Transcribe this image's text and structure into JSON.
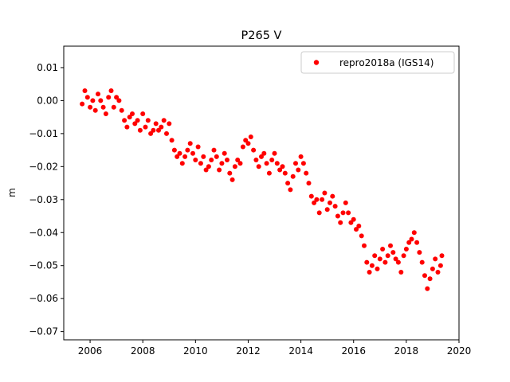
{
  "chart_data": {
    "type": "scatter",
    "title": "P265 V",
    "xlabel": "",
    "ylabel": "m",
    "xlim": [
      2005.0,
      2020.0
    ],
    "ylim": [
      -0.0725,
      0.0165
    ],
    "xticks": [
      2006,
      2008,
      2010,
      2012,
      2014,
      2016,
      2018,
      2020
    ],
    "xtick_labels": [
      "2006",
      "2008",
      "2010",
      "2012",
      "2014",
      "2016",
      "2018",
      "2020"
    ],
    "yticks": [
      0.01,
      0.0,
      -0.01,
      -0.02,
      -0.03,
      -0.04,
      -0.05,
      -0.06,
      -0.07
    ],
    "ytick_labels": [
      "0.01",
      "0.00",
      "−0.01",
      "−0.02",
      "−0.03",
      "−0.04",
      "−0.05",
      "−0.06",
      "−0.07"
    ],
    "grid": false,
    "legend_position": "top-right",
    "series": [
      {
        "name": "repro2018a (IGS14)",
        "color": "#ff0000",
        "marker": "circle",
        "x": [
          2005.7,
          2005.8,
          2005.9,
          2006.0,
          2006.1,
          2006.2,
          2006.3,
          2006.4,
          2006.5,
          2006.6,
          2006.7,
          2006.8,
          2006.9,
          2007.0,
          2007.1,
          2007.2,
          2007.3,
          2007.4,
          2007.5,
          2007.6,
          2007.7,
          2007.8,
          2007.9,
          2008.0,
          2008.1,
          2008.2,
          2008.3,
          2008.4,
          2008.5,
          2008.6,
          2008.7,
          2008.8,
          2008.9,
          2009.0,
          2009.1,
          2009.2,
          2009.3,
          2009.4,
          2009.5,
          2009.6,
          2009.7,
          2009.8,
          2009.9,
          2010.0,
          2010.1,
          2010.2,
          2010.3,
          2010.4,
          2010.5,
          2010.6,
          2010.7,
          2010.8,
          2010.9,
          2011.0,
          2011.1,
          2011.2,
          2011.3,
          2011.4,
          2011.5,
          2011.6,
          2011.7,
          2011.8,
          2011.9,
          2012.0,
          2012.1,
          2012.2,
          2012.3,
          2012.4,
          2012.5,
          2012.6,
          2012.7,
          2012.8,
          2012.9,
          2013.0,
          2013.1,
          2013.2,
          2013.3,
          2013.4,
          2013.5,
          2013.6,
          2013.7,
          2013.8,
          2013.9,
          2014.0,
          2014.1,
          2014.2,
          2014.3,
          2014.4,
          2014.5,
          2014.6,
          2014.7,
          2014.8,
          2014.9,
          2015.0,
          2015.1,
          2015.2,
          2015.3,
          2015.4,
          2015.5,
          2015.6,
          2015.7,
          2015.8,
          2015.9,
          2016.0,
          2016.1,
          2016.2,
          2016.3,
          2016.4,
          2016.5,
          2016.6,
          2016.7,
          2016.8,
          2016.9,
          2017.0,
          2017.1,
          2017.2,
          2017.3,
          2017.4,
          2017.5,
          2017.6,
          2017.7,
          2017.8,
          2017.9,
          2018.0,
          2018.1,
          2018.2,
          2018.3,
          2018.4,
          2018.5,
          2018.6,
          2018.7,
          2018.8,
          2018.9,
          2019.0,
          2019.1,
          2019.2,
          2019.3,
          2019.35
        ],
        "y": [
          -0.001,
          0.003,
          0.001,
          -0.002,
          0.0,
          -0.003,
          0.002,
          0.0,
          -0.002,
          -0.004,
          0.001,
          0.003,
          -0.002,
          0.001,
          0.0,
          -0.003,
          -0.006,
          -0.008,
          -0.005,
          -0.004,
          -0.007,
          -0.006,
          -0.009,
          -0.004,
          -0.008,
          -0.006,
          -0.01,
          -0.009,
          -0.007,
          -0.009,
          -0.008,
          -0.006,
          -0.01,
          -0.007,
          -0.012,
          -0.015,
          -0.017,
          -0.016,
          -0.019,
          -0.017,
          -0.015,
          -0.013,
          -0.016,
          -0.018,
          -0.014,
          -0.019,
          -0.017,
          -0.021,
          -0.02,
          -0.018,
          -0.015,
          -0.017,
          -0.021,
          -0.019,
          -0.016,
          -0.018,
          -0.022,
          -0.024,
          -0.02,
          -0.018,
          -0.019,
          -0.014,
          -0.012,
          -0.013,
          -0.011,
          -0.015,
          -0.018,
          -0.02,
          -0.017,
          -0.016,
          -0.019,
          -0.022,
          -0.018,
          -0.016,
          -0.019,
          -0.021,
          -0.02,
          -0.022,
          -0.025,
          -0.027,
          -0.023,
          -0.019,
          -0.021,
          -0.017,
          -0.019,
          -0.022,
          -0.025,
          -0.029,
          -0.031,
          -0.03,
          -0.034,
          -0.03,
          -0.028,
          -0.033,
          -0.031,
          -0.029,
          -0.032,
          -0.035,
          -0.037,
          -0.034,
          -0.031,
          -0.034,
          -0.037,
          -0.036,
          -0.039,
          -0.038,
          -0.041,
          -0.044,
          -0.049,
          -0.052,
          -0.05,
          -0.047,
          -0.051,
          -0.048,
          -0.045,
          -0.049,
          -0.047,
          -0.044,
          -0.046,
          -0.048,
          -0.049,
          -0.052,
          -0.047,
          -0.045,
          -0.043,
          -0.042,
          -0.04,
          -0.043,
          -0.046,
          -0.049,
          -0.053,
          -0.057,
          -0.054,
          -0.051,
          -0.048,
          -0.052,
          -0.05,
          -0.047
        ]
      }
    ]
  }
}
